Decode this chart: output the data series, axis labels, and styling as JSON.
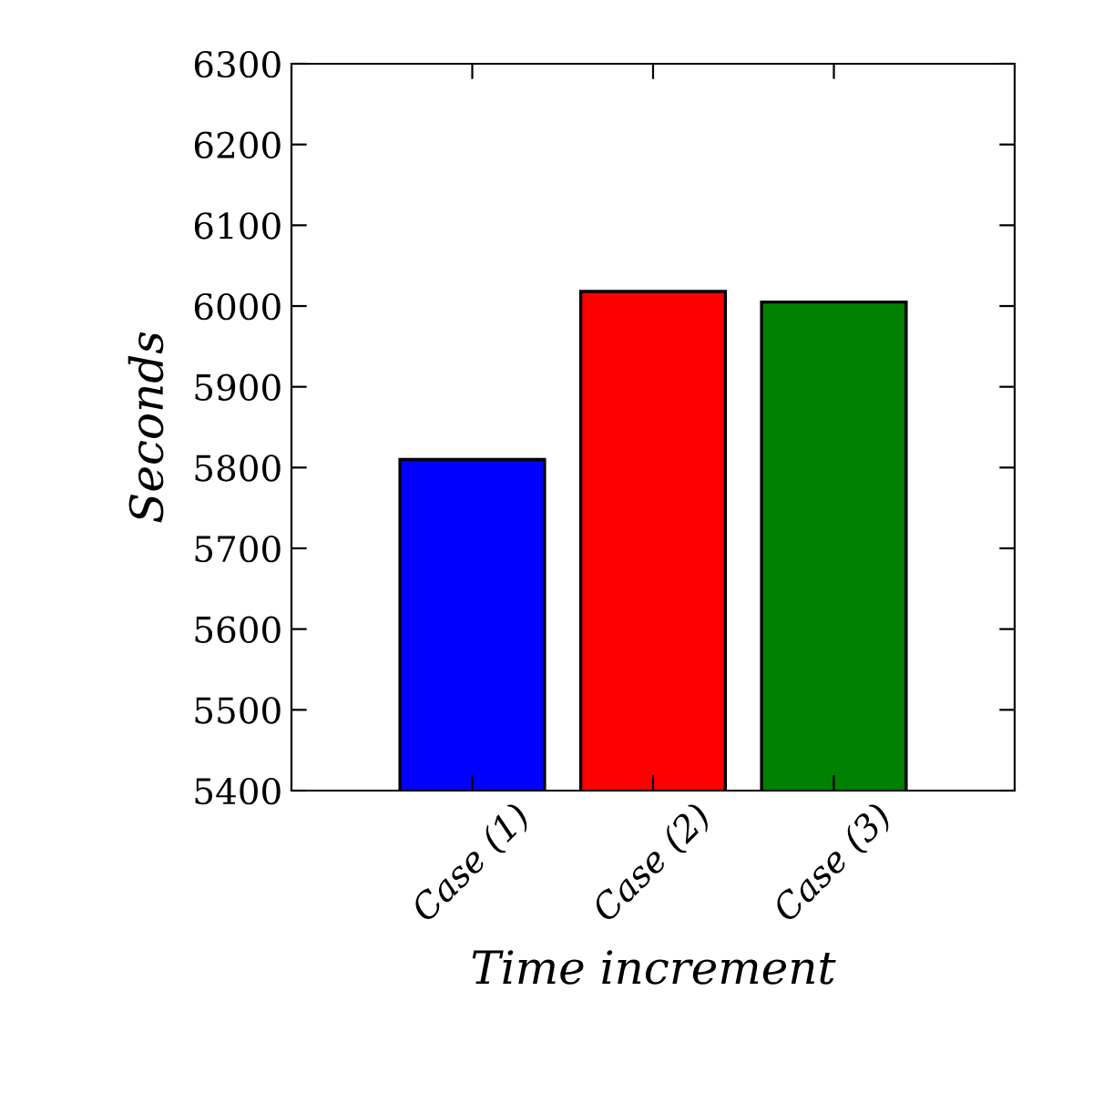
{
  "chart_data": {
    "type": "bar",
    "xlabel": "Time increment",
    "ylabel": "Seconds",
    "categories": [
      "Case (1)",
      "Case (2)",
      "Case (3)"
    ],
    "values": [
      5810,
      6018,
      6005
    ],
    "colors": [
      "#0000ff",
      "#ff0000",
      "#008000"
    ],
    "ylim": [
      5400,
      6300
    ],
    "yticks": [
      5400,
      5500,
      5600,
      5700,
      5800,
      5900,
      6000,
      6100,
      6200,
      6300
    ],
    "grid": false,
    "legend": false
  }
}
